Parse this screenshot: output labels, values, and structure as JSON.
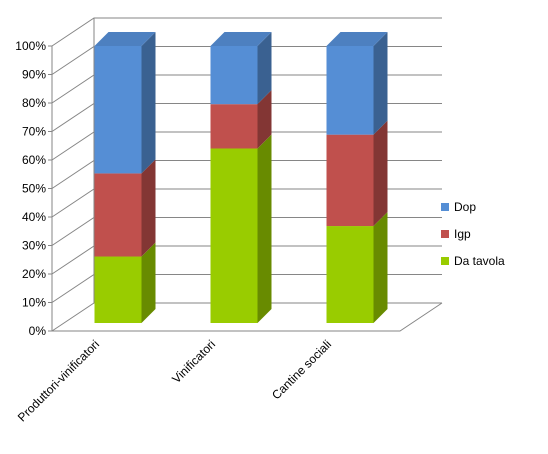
{
  "chart_data": {
    "type": "bar",
    "stacked": "percent",
    "categories": [
      "Produttori-vinificatori",
      "Vinificatori",
      "Cantine sociali"
    ],
    "series": [
      {
        "name": "Da tavola",
        "values": [
          24,
          63,
          35
        ],
        "color": "#99CC00"
      },
      {
        "name": "Igp",
        "values": [
          30,
          16,
          33
        ],
        "color": "#C0504D"
      },
      {
        "name": "Dop",
        "values": [
          46,
          21,
          32
        ],
        "color": "#558ED5"
      }
    ],
    "yticks": [
      "0%",
      "10%",
      "20%",
      "30%",
      "40%",
      "50%",
      "60%",
      "70%",
      "80%",
      "90%",
      "100%"
    ],
    "ylim": [
      0,
      100
    ],
    "grid": true,
    "legend": "right"
  }
}
